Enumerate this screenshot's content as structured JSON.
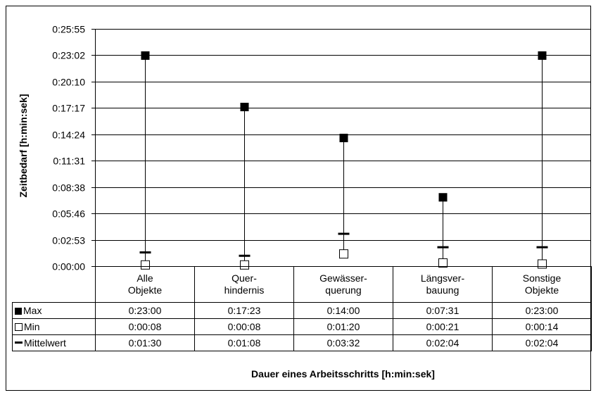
{
  "chart_data": {
    "type": "scatter",
    "ylabel": "Zeitbedarf [h:min:sek]",
    "xlabel": "Dauer eines Arbeitsschritts [h:min:sek]",
    "yticks": [
      "0:00:00",
      "0:02:53",
      "0:05:46",
      "0:08:38",
      "0:11:31",
      "0:14:24",
      "0:17:17",
      "0:20:10",
      "0:23:02",
      "0:25:55"
    ],
    "ylim": [
      "0:00:00",
      "0:25:55"
    ],
    "grid": "horizontal",
    "categories": [
      [
        "Alle",
        "Objekte"
      ],
      [
        "Quer-",
        "hindernis"
      ],
      [
        "Gewässer-",
        "querung"
      ],
      [
        "Längsver-",
        "bauung"
      ],
      [
        "Sonstige",
        "Objekte"
      ]
    ],
    "series": [
      {
        "name": "Max",
        "marker": "filled-square",
        "values": [
          "0:23:00",
          "0:17:23",
          "0:14:00",
          "0:07:31",
          "0:23:00"
        ]
      },
      {
        "name": "Min",
        "marker": "open-square",
        "values": [
          "0:00:08",
          "0:00:08",
          "0:01:20",
          "0:00:21",
          "0:00:14"
        ]
      },
      {
        "name": "Mittelwert",
        "marker": "dash",
        "values": [
          "0:01:30",
          "0:01:08",
          "0:03:32",
          "0:02:04",
          "0:02:04"
        ]
      }
    ],
    "colors": {
      "marker": "#000000",
      "background": "#ffffff"
    }
  }
}
